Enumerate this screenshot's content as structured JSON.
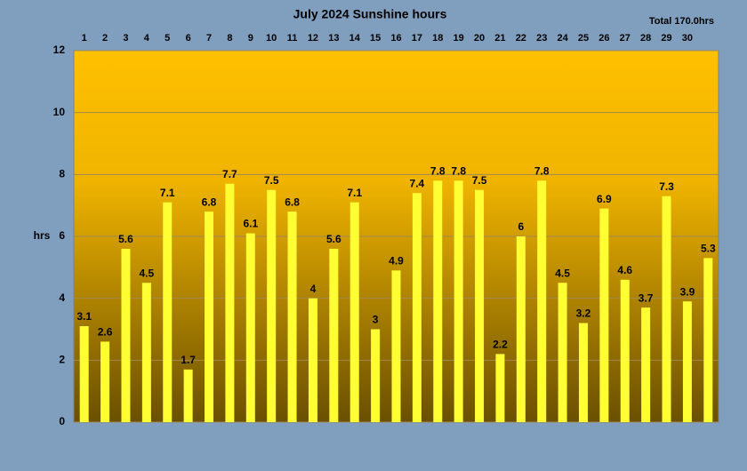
{
  "chart_data": {
    "type": "bar",
    "title": "July 2024 Sunshine hours",
    "annotation": "Total 170.0hrs",
    "y_label": "hrs",
    "categories": [
      "1",
      "2",
      "3",
      "4",
      "5",
      "6",
      "7",
      "8",
      "9",
      "10",
      "11",
      "12",
      "13",
      "14",
      "15",
      "16",
      "17",
      "18",
      "19",
      "20",
      "21",
      "22",
      "23",
      "24",
      "25",
      "26",
      "27",
      "28",
      "29",
      "30",
      null
    ],
    "values": [
      3.1,
      2.6,
      5.6,
      4.5,
      7.1,
      1.7,
      6.8,
      7.7,
      6.1,
      7.5,
      6.8,
      4,
      5.6,
      7.1,
      3,
      4.9,
      7.4,
      7.8,
      7.8,
      7.5,
      2.2,
      6,
      7.8,
      4.5,
      3.2,
      6.9,
      4.6,
      3.7,
      7.3,
      3.9,
      5.3
    ],
    "color": "#ffff33",
    "ylim": [
      0,
      12
    ],
    "yticks": [
      0,
      2,
      4,
      6,
      8,
      10,
      12
    ],
    "grid": true
  }
}
